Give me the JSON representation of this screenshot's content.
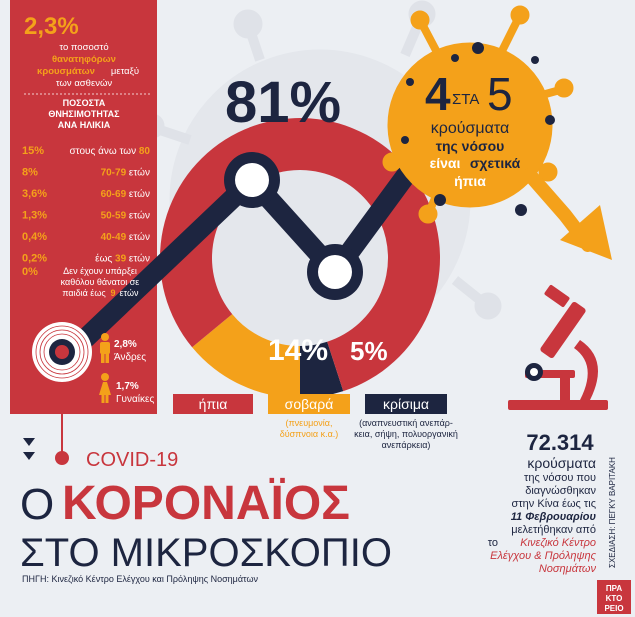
{
  "sidebar": {
    "fatal_percent": "2,3%",
    "fatal_line1": "το ποσοστό",
    "fatal_line2": "θανατηφόρων",
    "fatal_line3": "κρουσμάτων",
    "fatal_line3b": "μεταξύ",
    "fatal_line4": "των ασθενών",
    "table_title_1": "ΠΟΣΟΣΤΑ",
    "table_title_2": "ΘΝΗΣΙΜΟΤΗΤΑΣ",
    "table_title_3": "ΑΝΑ ΗΛΙΚΙΑ",
    "ages": [
      {
        "value": "15%",
        "pre": "στους άνω των",
        "num": "80",
        "post": ""
      },
      {
        "value": "8%",
        "pre": "",
        "num": "70-79",
        "post": "ετών"
      },
      {
        "value": "3,6%",
        "pre": "",
        "num": "60-69",
        "post": "ετών"
      },
      {
        "value": "1,3%",
        "pre": "",
        "num": "50-59",
        "post": "ετών"
      },
      {
        "value": "0,4%",
        "pre": "",
        "num": "40-49",
        "post": "ετών"
      },
      {
        "value": "0,2%",
        "pre": "έως",
        "num": "39",
        "post": "ετών"
      }
    ],
    "zero_value": "0%",
    "zero_line1": "Δεν έχουν υπάρξει",
    "zero_line2": "καθόλου θάνατοι σε",
    "zero_line3_pre": "παιδιά έως",
    "zero_line3_num": "9",
    "zero_line3_post": "ετών",
    "men_value": "2,8%",
    "men_label": "Άνδρες",
    "women_value": "1,7%",
    "women_label": "Γυναίκες"
  },
  "virus": {
    "n1": "4",
    "sta": "ΣΤΑ",
    "n2": "5",
    "line2": "κρούσματα",
    "line3": "της νόσου",
    "line4a": "είναι",
    "line4b": "σχετικά",
    "line5": "ήπια"
  },
  "chart_data": {
    "type": "pie",
    "style": "donut",
    "slices": [
      {
        "label": "ήπια",
        "value": 81,
        "display": "81%",
        "color": "#c8363d"
      },
      {
        "label": "σοβαρά",
        "value": 14,
        "display": "14%",
        "color": "#f4a11a"
      },
      {
        "label": "κρίσιμα",
        "value": 5,
        "display": "5%",
        "color": "#1d2540"
      }
    ]
  },
  "legend": {
    "mild": "ήπια",
    "severe": "σοβαρά",
    "severe_note_1": "(πνευμονία,",
    "severe_note_2": "δύσπνοια κ.α.)",
    "critical": "κρίσιμα",
    "critical_note_1": "(αναπνευστική ανεπάρ-",
    "critical_note_2": "κεια, σήψη, πολυοργανική",
    "critical_note_3": "ανεπάρκεια)"
  },
  "cases": {
    "number": "72.314",
    "line1": "κρούσματα",
    "line2": "της νόσου που",
    "line3": "διαγνώσθηκαν",
    "line4_pre": "στην Κίνα έως τις",
    "line5": "11 Φεβρουαρίου",
    "line6": "μελετήθηκαν από",
    "line7_pre": "το",
    "line7_em": "Κινεζικό Κέντρο",
    "line8": "Ελέγχου & Πρόληψης",
    "line9": "Νοσημάτων"
  },
  "title": {
    "covid": "COVID-19",
    "o": "Ο",
    "main": "ΚΟΡΟΝΑΪΟΣ",
    "sub": "ΣΤΟ ΜΙΚΡΟΣΚΟΠΙΟ"
  },
  "design_credit": "ΣΧΕΔΙΑΣΗ: ΠΕΓΚΥ ΒΑΡΙΤΑΚΗ",
  "source": "ΠΗΓΗ: Κινεζικό Κέντρο Ελέγχου και Πρόληψης Νοσημάτων",
  "logo_text": "ΠΡΑΚΤΟΡΕΙΟ",
  "colors": {
    "red": "#c8363d",
    "orange": "#f4a11a",
    "navy": "#1d2540",
    "background": "#eceff3"
  }
}
